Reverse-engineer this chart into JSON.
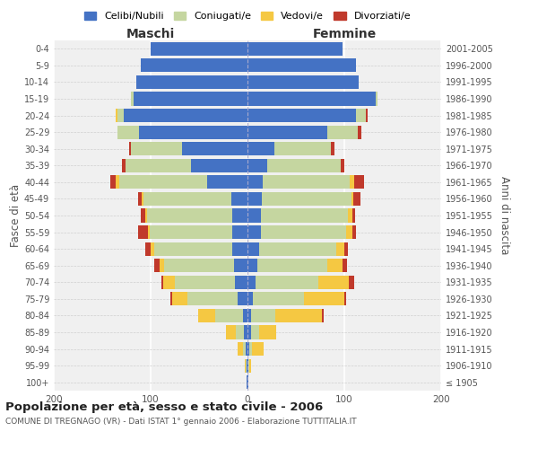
{
  "age_groups": [
    "100+",
    "95-99",
    "90-94",
    "85-89",
    "80-84",
    "75-79",
    "70-74",
    "65-69",
    "60-64",
    "55-59",
    "50-54",
    "45-49",
    "40-44",
    "35-39",
    "30-34",
    "25-29",
    "20-24",
    "15-19",
    "10-14",
    "5-9",
    "0-4"
  ],
  "birth_years": [
    "≤ 1905",
    "1906-1910",
    "1911-1915",
    "1916-1920",
    "1921-1925",
    "1926-1930",
    "1931-1935",
    "1936-1940",
    "1941-1945",
    "1946-1950",
    "1951-1955",
    "1956-1960",
    "1961-1965",
    "1966-1970",
    "1971-1975",
    "1976-1980",
    "1981-1985",
    "1986-1990",
    "1991-1995",
    "1996-2000",
    "2001-2005"
  ],
  "maschi": {
    "celibi": [
      1,
      1,
      2,
      4,
      5,
      10,
      13,
      14,
      16,
      16,
      16,
      17,
      42,
      58,
      68,
      112,
      128,
      118,
      115,
      110,
      100
    ],
    "coniugati": [
      0,
      1,
      3,
      8,
      28,
      52,
      62,
      72,
      80,
      85,
      88,
      90,
      90,
      68,
      52,
      22,
      6,
      2,
      0,
      0,
      0
    ],
    "vedovi": [
      0,
      1,
      5,
      10,
      18,
      16,
      12,
      5,
      4,
      2,
      2,
      2,
      4,
      0,
      0,
      0,
      2,
      0,
      0,
      0,
      0
    ],
    "divorziati": [
      0,
      0,
      0,
      0,
      0,
      2,
      2,
      5,
      6,
      10,
      4,
      4,
      6,
      4,
      2,
      0,
      0,
      0,
      0,
      0,
      0
    ]
  },
  "femmine": {
    "nubili": [
      1,
      1,
      2,
      4,
      4,
      6,
      8,
      10,
      12,
      14,
      14,
      15,
      16,
      20,
      28,
      82,
      112,
      132,
      115,
      112,
      98
    ],
    "coniugate": [
      0,
      1,
      3,
      8,
      25,
      52,
      65,
      72,
      80,
      88,
      90,
      92,
      90,
      76,
      58,
      32,
      10,
      2,
      0,
      0,
      0
    ],
    "vedove": [
      0,
      2,
      12,
      18,
      48,
      42,
      32,
      16,
      8,
      6,
      4,
      2,
      4,
      0,
      0,
      0,
      0,
      0,
      0,
      0,
      0
    ],
    "divorziate": [
      0,
      0,
      0,
      0,
      2,
      2,
      5,
      5,
      4,
      4,
      3,
      8,
      10,
      4,
      4,
      4,
      2,
      0,
      0,
      0,
      0
    ]
  },
  "colors": {
    "celibi": "#4472C4",
    "coniugati": "#C5D6A0",
    "vedovi": "#F5C842",
    "divorziati": "#C0392B"
  },
  "title": "Popolazione per età, sesso e stato civile - 2006",
  "subtitle": "COMUNE DI TREGNAGO (VR) - Dati ISTAT 1° gennaio 2006 - Elaborazione TUTTITALIA.IT",
  "xlabel_left": "Maschi",
  "xlabel_right": "Femmine",
  "ylabel_left": "Fasce di età",
  "ylabel_right": "Anni di nascita",
  "legend": [
    "Celibi/Nubili",
    "Coniugati/e",
    "Vedovi/e",
    "Divorziati/e"
  ],
  "xlim": 200,
  "xticks": [
    200,
    100,
    0,
    100,
    200
  ]
}
